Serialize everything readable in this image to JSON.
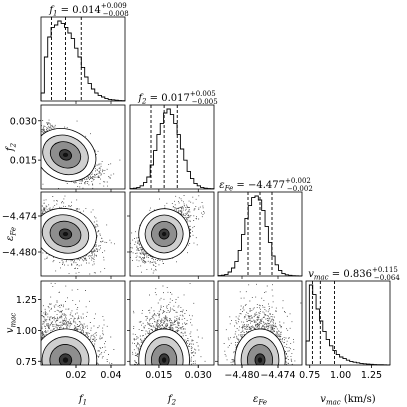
{
  "chart_data": {
    "type": "corner",
    "parameters": [
      {
        "key": "f1",
        "label_main": "f",
        "label_sub": "1",
        "title_main": "= 0.014",
        "title_sup": "+0.009",
        "title_sub": "−0.008",
        "range": [
          0.0,
          0.048
        ],
        "ticks": [
          0.02,
          0.04
        ],
        "tick_labels": [
          "0.02",
          "0.04"
        ],
        "ytick_labels": [],
        "quantiles": [
          0.006,
          0.014,
          0.023
        ],
        "hist": [
          0.1,
          0.55,
          0.8,
          0.92,
          0.95,
          1.0,
          0.97,
          0.92,
          0.85,
          0.78,
          0.66,
          0.55,
          0.42,
          0.3,
          0.22,
          0.15,
          0.1,
          0.07,
          0.05,
          0.03,
          0.02,
          0.015,
          0.01,
          0.006,
          0.004
        ]
      },
      {
        "key": "f2",
        "label_main": "f",
        "label_sub": "2",
        "title_main": "= 0.017",
        "title_sup": "+0.005",
        "title_sub": "−0.005",
        "range": [
          0.004,
          0.036
        ],
        "ticks": [
          0.015,
          0.03
        ],
        "tick_labels": [
          "0.015",
          "0.030"
        ],
        "ytick_labels": [
          "0.015",
          "0.030"
        ],
        "quantiles": [
          0.012,
          0.017,
          0.022
        ],
        "hist": [
          0.005,
          0.01,
          0.02,
          0.04,
          0.08,
          0.15,
          0.3,
          0.48,
          0.68,
          0.82,
          0.95,
          1.0,
          0.93,
          0.82,
          0.68,
          0.5,
          0.36,
          0.22,
          0.13,
          0.07,
          0.04,
          0.02,
          0.01,
          0.005,
          0.003
        ]
      },
      {
        "key": "eps",
        "label_main": "ε",
        "label_sub": "Fe",
        "title_main": "= −4.477",
        "title_sup": "+0.002",
        "title_sub": "−0.002",
        "range": [
          -4.484,
          -4.47
        ],
        "ticks": [
          -4.48,
          -4.474
        ],
        "tick_labels": [
          "−4.480",
          "−4.474"
        ],
        "ytick_labels": [
          "−4.480",
          "−4.474"
        ],
        "quantiles": [
          -4.479,
          -4.477,
          -4.475
        ],
        "hist": [
          0.005,
          0.01,
          0.02,
          0.05,
          0.1,
          0.18,
          0.32,
          0.52,
          0.72,
          0.88,
          0.98,
          1.0,
          0.95,
          0.82,
          0.62,
          0.42,
          0.25,
          0.14,
          0.07,
          0.03,
          0.015,
          0.008,
          0.004,
          0.002,
          0.001
        ]
      },
      {
        "key": "vmac",
        "label_main": "v",
        "label_sub": "mac",
        "label_suffix": " (km/s)",
        "title_main": "= 0.836",
        "title_sup": "+0.115",
        "title_sub": "−0.064",
        "range": [
          0.72,
          1.4
        ],
        "ticks": [
          0.75,
          1.0,
          1.25
        ],
        "tick_labels": [
          "0.75",
          "1.00",
          "1.25"
        ],
        "ytick_labels": [
          "0.75",
          "1.00",
          "1.25"
        ],
        "quantiles": [
          0.772,
          0.836,
          0.951
        ],
        "hist": [
          0.3,
          1.0,
          0.88,
          0.7,
          0.55,
          0.42,
          0.32,
          0.24,
          0.18,
          0.13,
          0.1,
          0.08,
          0.06,
          0.045,
          0.035,
          0.027,
          0.02,
          0.015,
          0.011,
          0.008,
          0.006,
          0.004,
          0.003,
          0.002,
          0.001
        ]
      }
    ],
    "pairs": [
      {
        "row": 1,
        "col": 0,
        "mean": [
          0.014,
          0.017
        ],
        "sd": [
          0.0085,
          0.0046
        ],
        "rho": -0.6,
        "yscale": 0.95
      },
      {
        "row": 2,
        "col": 0,
        "mean": [
          0.014,
          -4.477
        ],
        "sd": [
          0.0085,
          0.002
        ],
        "rho": -0.35,
        "yscale": 0.95
      },
      {
        "row": 2,
        "col": 1,
        "mean": [
          0.017,
          -4.477
        ],
        "sd": [
          0.0046,
          0.002
        ],
        "rho": 0.55,
        "yscale": 0.95
      },
      {
        "row": 3,
        "col": 0,
        "mean": [
          0.014,
          0.78
        ],
        "sd": [
          0.0085,
          0.1
        ],
        "rho": -0.3,
        "yscale": 1.0,
        "skew_y": true
      },
      {
        "row": 3,
        "col": 1,
        "mean": [
          0.017,
          0.78
        ],
        "sd": [
          0.0046,
          0.1
        ],
        "rho": 0.0,
        "yscale": 1.0,
        "skew_y": true
      },
      {
        "row": 3,
        "col": 2,
        "mean": [
          -4.477,
          0.78
        ],
        "sd": [
          0.002,
          0.1
        ],
        "rho": 0.0,
        "yscale": 1.0,
        "skew_y": true
      }
    ],
    "contour_levels": [
      0.4,
      1.0,
      1.5,
      2.0
    ]
  }
}
